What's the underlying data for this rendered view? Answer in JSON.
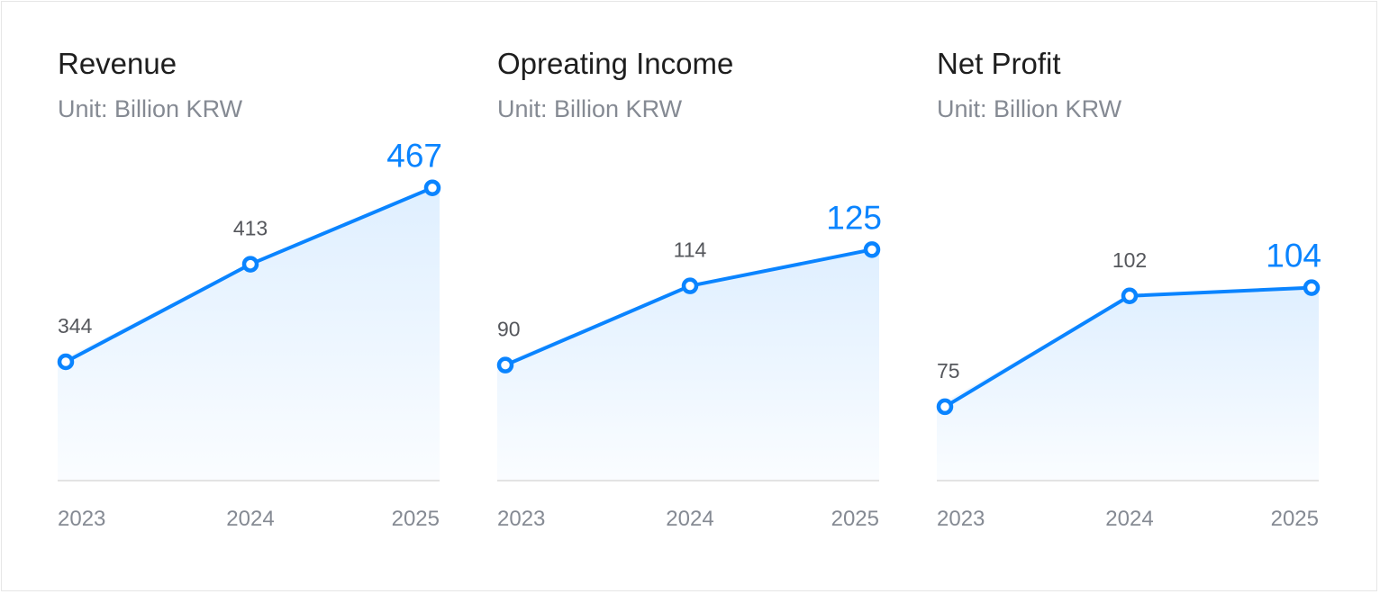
{
  "accent_color": "#0A84FF",
  "chart_data": [
    {
      "type": "area",
      "title": "Revenue",
      "subtitle": "Unit: Billion KRW",
      "categories": [
        "2023",
        "2024",
        "2025"
      ],
      "values": [
        344,
        413,
        467
      ],
      "ylim": [
        260,
        498
      ]
    },
    {
      "type": "area",
      "title": "Opreating Income",
      "subtitle": "Unit: Billion KRW",
      "categories": [
        "2023",
        "2024",
        "2025"
      ],
      "values": [
        90,
        114,
        125
      ],
      "ylim": [
        55,
        157
      ]
    },
    {
      "type": "area",
      "title": "Net Profit",
      "subtitle": "Unit: Billion KRW",
      "categories": [
        "2023",
        "2024",
        "2025"
      ],
      "values": [
        75,
        102,
        104
      ],
      "ylim": [
        57,
        139
      ]
    }
  ]
}
